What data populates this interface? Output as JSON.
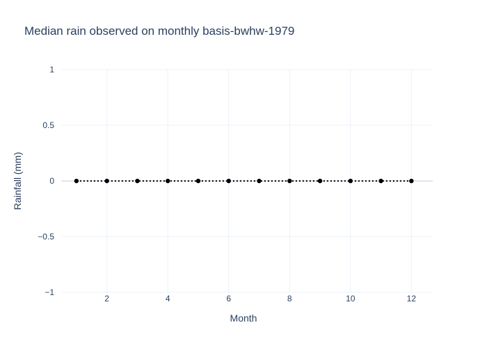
{
  "chart_data": {
    "type": "line",
    "title": "Median rain observed on monthly basis-bwhw-1979",
    "xlabel": "Month",
    "ylabel": "Rainfall (mm)",
    "x": [
      1,
      2,
      3,
      4,
      5,
      6,
      7,
      8,
      9,
      10,
      11,
      12
    ],
    "series": [
      {
        "values": [
          0,
          0,
          0,
          0,
          0,
          0,
          0,
          0,
          0,
          0,
          0,
          0
        ],
        "color": "#000000",
        "line_style": "dotted",
        "markers": true
      }
    ],
    "xlim": [
      0.5,
      12.7
    ],
    "ylim": [
      -1,
      1
    ],
    "x_ticks": [
      2,
      4,
      6,
      8,
      10,
      12
    ],
    "y_ticks": [
      1,
      0.5,
      0,
      -0.5,
      -1
    ],
    "y_tick_labels": [
      "1",
      "0.5",
      "0",
      "−0.5",
      "−1"
    ],
    "grid": true,
    "legend": "none"
  },
  "colors": {
    "text": "#2a3f5f",
    "grid": "#ebf0f8",
    "zero_line": "#e0e6ee",
    "background": "#ffffff"
  }
}
